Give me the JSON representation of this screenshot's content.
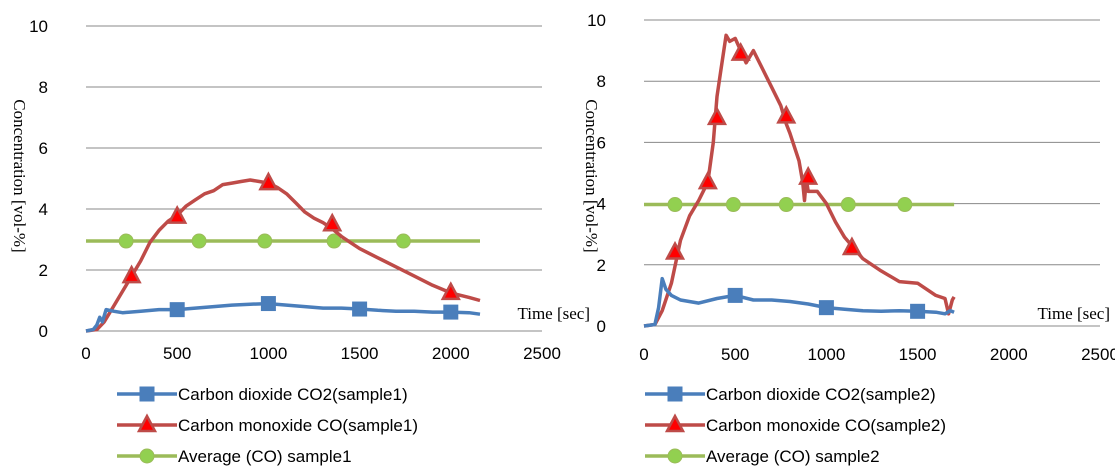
{
  "chart_data": [
    {
      "type": "line",
      "xlabel": "Time [sec]",
      "ylabel": "Concentration [vol-%]",
      "xlim": [
        0,
        2500
      ],
      "ylim": [
        0,
        10
      ],
      "xticks": [
        "0",
        "500",
        "1000",
        "1500",
        "2000",
        "2500"
      ],
      "yticks": [
        "0",
        "2",
        "4",
        "6",
        "8",
        "10"
      ],
      "grid": "horizontal",
      "legend_position": "bottom",
      "series": [
        {
          "name": "Carbon dioxide CO2(sample1)",
          "color": "#4a7ebb",
          "marker": "square",
          "x": [
            0,
            40,
            60,
            75,
            90,
            110,
            150,
            200,
            300,
            400,
            500,
            600,
            700,
            800,
            900,
            1000,
            1100,
            1200,
            1300,
            1400,
            1500,
            1600,
            1700,
            1800,
            1900,
            2000,
            2100,
            2160
          ],
          "y": [
            0,
            0.05,
            0.2,
            0.45,
            0.3,
            0.7,
            0.65,
            0.6,
            0.65,
            0.7,
            0.7,
            0.75,
            0.8,
            0.85,
            0.88,
            0.9,
            0.85,
            0.8,
            0.75,
            0.75,
            0.72,
            0.68,
            0.65,
            0.65,
            0.62,
            0.62,
            0.6,
            0.55
          ],
          "marker_x": [
            500,
            1000,
            1500,
            2000
          ],
          "marker_y": [
            0.7,
            0.9,
            0.72,
            0.62
          ]
        },
        {
          "name": "Carbon monoxide CO(sample1)",
          "color": "#be4b48",
          "marker": "triangle",
          "x": [
            0,
            60,
            100,
            150,
            200,
            250,
            300,
            350,
            400,
            450,
            500,
            550,
            600,
            650,
            700,
            750,
            800,
            850,
            900,
            950,
            1000,
            1050,
            1100,
            1150,
            1200,
            1250,
            1300,
            1350,
            1400,
            1450,
            1500,
            1600,
            1700,
            1800,
            1900,
            2000,
            2100,
            2160
          ],
          "y": [
            0,
            0.05,
            0.3,
            0.8,
            1.3,
            1.8,
            2.3,
            2.9,
            3.3,
            3.6,
            3.8,
            4.1,
            4.3,
            4.5,
            4.6,
            4.8,
            4.85,
            4.9,
            4.95,
            4.9,
            4.85,
            4.7,
            4.5,
            4.2,
            3.9,
            3.7,
            3.55,
            3.35,
            3.1,
            2.9,
            2.7,
            2.4,
            2.1,
            1.8,
            1.5,
            1.25,
            1.1,
            1.0
          ],
          "marker_x": [
            250,
            500,
            1000,
            1350,
            2000
          ],
          "marker_y": [
            1.8,
            3.75,
            4.85,
            3.5,
            1.25
          ]
        },
        {
          "name": "Average (CO) sample1",
          "color": "#9bbb59",
          "marker": "circle",
          "x": [
            0,
            2160
          ],
          "y": [
            2.95,
            2.95
          ],
          "marker_x": [
            220,
            620,
            980,
            1360,
            1740
          ],
          "marker_y": [
            2.95,
            2.95,
            2.95,
            2.95,
            2.95
          ]
        }
      ]
    },
    {
      "type": "line",
      "xlabel": "Time [sec]",
      "ylabel": "Concentration [vol-%]",
      "xlim": [
        0,
        2500
      ],
      "ylim": [
        0,
        10
      ],
      "xticks": [
        "0",
        "500",
        "1000",
        "1500",
        "2000",
        "2500"
      ],
      "yticks": [
        "0",
        "2",
        "4",
        "6",
        "8",
        "10"
      ],
      "grid": "horizontal",
      "legend_position": "bottom",
      "series": [
        {
          "name": "Carbon dioxide CO2(sample2)",
          "color": "#4a7ebb",
          "marker": "square",
          "x": [
            0,
            60,
            80,
            100,
            120,
            150,
            200,
            300,
            400,
            500,
            600,
            700,
            800,
            900,
            1000,
            1100,
            1200,
            1300,
            1400,
            1500,
            1600,
            1650,
            1680,
            1700
          ],
          "y": [
            0,
            0.05,
            0.6,
            1.55,
            1.2,
            1.0,
            0.85,
            0.75,
            0.9,
            1.0,
            0.85,
            0.85,
            0.8,
            0.72,
            0.6,
            0.55,
            0.5,
            0.48,
            0.5,
            0.48,
            0.45,
            0.4,
            0.5,
            0.45
          ],
          "marker_x": [
            500,
            1000,
            1500
          ],
          "marker_y": [
            1.0,
            0.6,
            0.48
          ]
        },
        {
          "name": "Carbon monoxide CO(sample2)",
          "color": "#be4b48",
          "marker": "triangle",
          "x": [
            0,
            60,
            100,
            150,
            200,
            250,
            300,
            350,
            380,
            400,
            420,
            450,
            470,
            500,
            530,
            560,
            600,
            650,
            700,
            750,
            780,
            800,
            850,
            870,
            880,
            890,
            900,
            950,
            1000,
            1050,
            1100,
            1200,
            1300,
            1400,
            1500,
            1550,
            1600,
            1650,
            1670,
            1690,
            1700
          ],
          "y": [
            0,
            0.05,
            0.5,
            1.4,
            2.8,
            3.6,
            4.1,
            4.7,
            6.0,
            7.5,
            8.3,
            9.5,
            9.3,
            9.4,
            9.0,
            8.6,
            9.0,
            8.4,
            7.8,
            7.2,
            6.6,
            6.3,
            5.4,
            4.7,
            4.1,
            4.8,
            4.4,
            4.4,
            4.0,
            3.4,
            2.9,
            2.2,
            1.8,
            1.45,
            1.4,
            1.2,
            1.0,
            0.9,
            0.4,
            0.85,
            0.95
          ],
          "marker_x": [
            170,
            350,
            400,
            530,
            780,
            900,
            1140
          ],
          "marker_y": [
            2.4,
            4.7,
            6.8,
            8.9,
            6.85,
            4.85,
            2.55
          ]
        },
        {
          "name": "Average (CO) sample2",
          "color": "#9bbb59",
          "marker": "circle",
          "x": [
            0,
            1700
          ],
          "y": [
            3.97,
            3.97
          ],
          "marker_x": [
            170,
            490,
            780,
            1120,
            1430
          ],
          "marker_y": [
            3.97,
            3.97,
            3.97,
            3.97,
            3.97
          ]
        }
      ]
    }
  ]
}
